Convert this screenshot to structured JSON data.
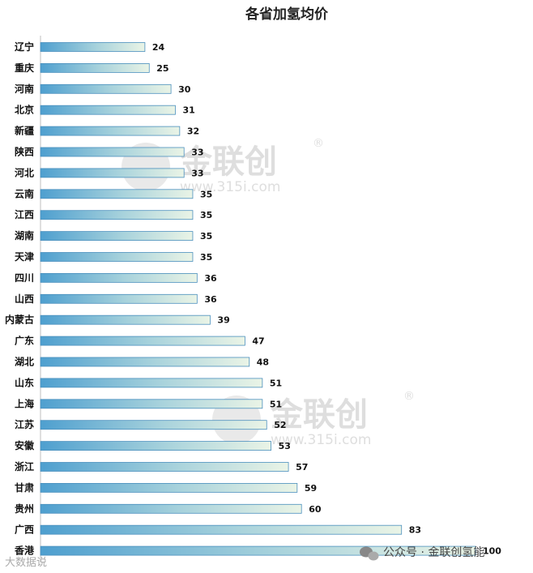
{
  "chart_data": {
    "type": "bar",
    "orientation": "horizontal",
    "title": "各省加氢均价",
    "categories": [
      "辽宁",
      "重庆",
      "河南",
      "北京",
      "新疆",
      "陕西",
      "河北",
      "云南",
      "江西",
      "湖南",
      "天津",
      "四川",
      "山西",
      "内蒙古",
      "广东",
      "湖北",
      "山东",
      "上海",
      "江苏",
      "安徽",
      "浙江",
      "甘肃",
      "贵州",
      "广西",
      "香港"
    ],
    "values": [
      24,
      25,
      30,
      31,
      32,
      33,
      33,
      35,
      35,
      35,
      35,
      36,
      36,
      39,
      47,
      48,
      51,
      51,
      52,
      53,
      57,
      59,
      60,
      83,
      100
    ],
    "xlim": [
      0,
      108
    ],
    "xlabel": "",
    "ylabel": "",
    "grid": false,
    "legend": "none"
  },
  "watermark": {
    "brand": "金联创",
    "registered": "®",
    "url": "www.315i.com"
  },
  "footer": {
    "wechat_label": "公众号 · 金联创氢能",
    "left_mark": "大数据说"
  },
  "colors": {
    "bar_start": "#4e9fcf",
    "bar_end": "#eaf4e6",
    "bar_stroke": "#4a8fbd"
  }
}
